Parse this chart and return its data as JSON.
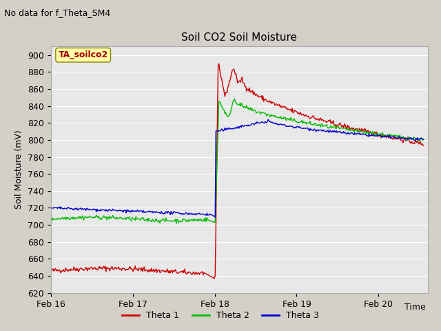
{
  "title": "Soil CO2 Soil Moisture",
  "no_data_text": "No data for f_Theta_SM4",
  "ylabel": "Soil Moisture (mV)",
  "xlabel": "Time",
  "legend_label": "TA_soilco2",
  "ylim": [
    620,
    910
  ],
  "yticks": [
    620,
    640,
    660,
    680,
    700,
    720,
    740,
    760,
    780,
    800,
    820,
    840,
    860,
    880,
    900
  ],
  "series": {
    "theta1": {
      "color": "#cc0000",
      "label": "Theta 1"
    },
    "theta2": {
      "color": "#00bb00",
      "label": "Theta 2"
    },
    "theta3": {
      "color": "#0000cc",
      "label": "Theta 3"
    }
  },
  "xticklabels": [
    "Feb 16",
    "Feb 17",
    "Feb 18",
    "Feb 19",
    "Feb 20"
  ],
  "xtick_positions": [
    0.0,
    1.0,
    2.0,
    3.0,
    4.0
  ],
  "xlim": [
    0.0,
    4.6
  ]
}
